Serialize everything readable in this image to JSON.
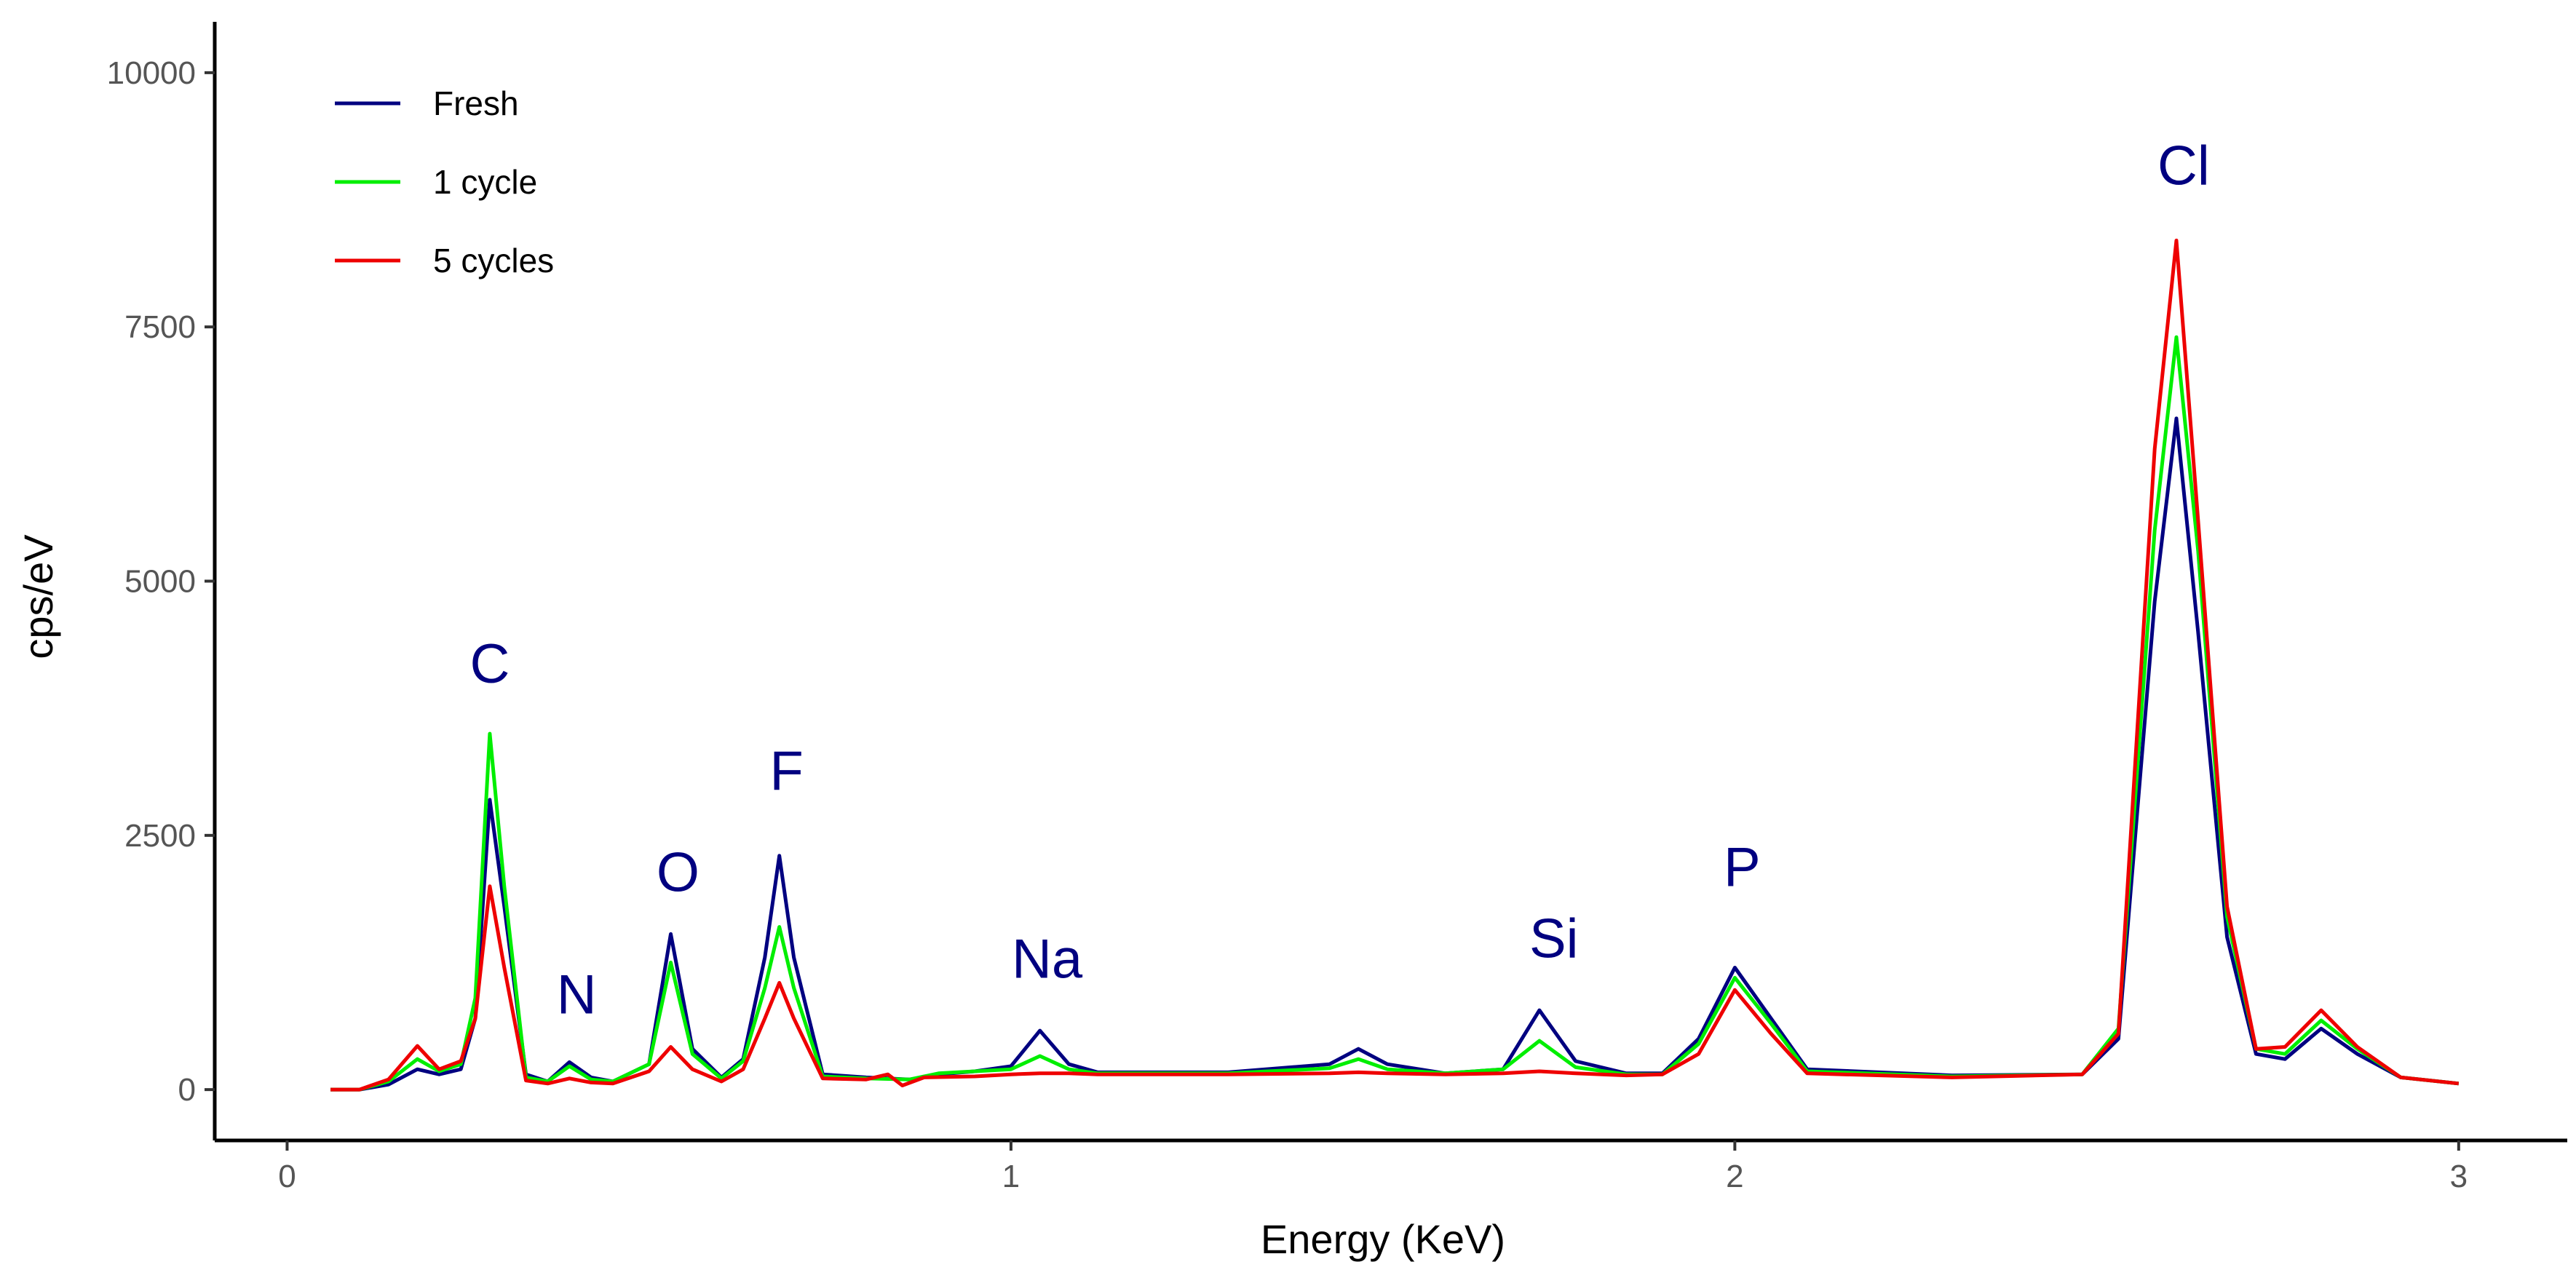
{
  "chart_data": {
    "type": "line",
    "title": "",
    "xlabel": "Energy (KeV)",
    "ylabel": "cps/eV",
    "xlim": [
      -0.1,
      3.15
    ],
    "ylim": [
      -500,
      10500
    ],
    "xticks": [
      0,
      1,
      2,
      3
    ],
    "xtick_labels": [
      "0",
      "1",
      "2",
      "3"
    ],
    "yticks": [
      0,
      2500,
      5000,
      7500,
      10000
    ],
    "ytick_labels": [
      "0",
      "2500",
      "5000",
      "7500",
      "10000"
    ],
    "grid": false,
    "legend_position": "top-left",
    "series": [
      {
        "name": "Fresh",
        "color": "#000080",
        "points": [
          [
            0.06,
            0
          ],
          [
            0.1,
            0
          ],
          [
            0.14,
            50
          ],
          [
            0.18,
            200
          ],
          [
            0.21,
            150
          ],
          [
            0.24,
            200
          ],
          [
            0.26,
            700
          ],
          [
            0.28,
            2850
          ],
          [
            0.3,
            1800
          ],
          [
            0.33,
            150
          ],
          [
            0.36,
            80
          ],
          [
            0.39,
            270
          ],
          [
            0.42,
            120
          ],
          [
            0.45,
            80
          ],
          [
            0.5,
            250
          ],
          [
            0.53,
            1530
          ],
          [
            0.56,
            400
          ],
          [
            0.6,
            120
          ],
          [
            0.63,
            300
          ],
          [
            0.66,
            1300
          ],
          [
            0.68,
            2300
          ],
          [
            0.7,
            1300
          ],
          [
            0.74,
            150
          ],
          [
            0.8,
            120
          ],
          [
            0.86,
            100
          ],
          [
            0.9,
            150
          ],
          [
            0.95,
            180
          ],
          [
            1.0,
            230
          ],
          [
            1.04,
            580
          ],
          [
            1.08,
            250
          ],
          [
            1.12,
            170
          ],
          [
            1.3,
            170
          ],
          [
            1.44,
            250
          ],
          [
            1.48,
            400
          ],
          [
            1.52,
            250
          ],
          [
            1.6,
            160
          ],
          [
            1.68,
            200
          ],
          [
            1.73,
            780
          ],
          [
            1.78,
            280
          ],
          [
            1.85,
            160
          ],
          [
            1.9,
            160
          ],
          [
            1.95,
            500
          ],
          [
            2.0,
            1200
          ],
          [
            2.05,
            700
          ],
          [
            2.1,
            200
          ],
          [
            2.3,
            140
          ],
          [
            2.48,
            150
          ],
          [
            2.53,
            500
          ],
          [
            2.58,
            4800
          ],
          [
            2.61,
            6600
          ],
          [
            2.64,
            4500
          ],
          [
            2.68,
            1500
          ],
          [
            2.72,
            350
          ],
          [
            2.76,
            300
          ],
          [
            2.81,
            600
          ],
          [
            2.86,
            350
          ],
          [
            2.92,
            120
          ],
          [
            3.0,
            60
          ]
        ]
      },
      {
        "name": "1 cycle",
        "color": "#00ee00",
        "points": [
          [
            0.06,
            0
          ],
          [
            0.1,
            0
          ],
          [
            0.14,
            80
          ],
          [
            0.18,
            300
          ],
          [
            0.21,
            180
          ],
          [
            0.24,
            250
          ],
          [
            0.26,
            900
          ],
          [
            0.28,
            3500
          ],
          [
            0.3,
            2000
          ],
          [
            0.33,
            120
          ],
          [
            0.36,
            80
          ],
          [
            0.39,
            230
          ],
          [
            0.42,
            100
          ],
          [
            0.45,
            80
          ],
          [
            0.5,
            250
          ],
          [
            0.53,
            1250
          ],
          [
            0.56,
            350
          ],
          [
            0.6,
            110
          ],
          [
            0.63,
            280
          ],
          [
            0.66,
            1000
          ],
          [
            0.68,
            1600
          ],
          [
            0.7,
            1000
          ],
          [
            0.74,
            130
          ],
          [
            0.8,
            110
          ],
          [
            0.86,
            100
          ],
          [
            0.9,
            160
          ],
          [
            0.95,
            180
          ],
          [
            1.0,
            200
          ],
          [
            1.04,
            330
          ],
          [
            1.08,
            200
          ],
          [
            1.12,
            160
          ],
          [
            1.3,
            160
          ],
          [
            1.44,
            210
          ],
          [
            1.48,
            300
          ],
          [
            1.52,
            200
          ],
          [
            1.6,
            160
          ],
          [
            1.68,
            200
          ],
          [
            1.73,
            480
          ],
          [
            1.78,
            220
          ],
          [
            1.85,
            150
          ],
          [
            1.9,
            150
          ],
          [
            1.95,
            450
          ],
          [
            2.0,
            1100
          ],
          [
            2.05,
            650
          ],
          [
            2.1,
            180
          ],
          [
            2.3,
            130
          ],
          [
            2.48,
            150
          ],
          [
            2.53,
            600
          ],
          [
            2.58,
            5500
          ],
          [
            2.61,
            7400
          ],
          [
            2.64,
            5300
          ],
          [
            2.68,
            1700
          ],
          [
            2.72,
            400
          ],
          [
            2.76,
            350
          ],
          [
            2.81,
            680
          ],
          [
            2.86,
            400
          ],
          [
            2.92,
            120
          ],
          [
            3.0,
            60
          ]
        ]
      },
      {
        "name": "5 cycles",
        "color": "#ee0000",
        "points": [
          [
            0.06,
            0
          ],
          [
            0.1,
            0
          ],
          [
            0.14,
            100
          ],
          [
            0.18,
            430
          ],
          [
            0.21,
            200
          ],
          [
            0.24,
            280
          ],
          [
            0.26,
            700
          ],
          [
            0.28,
            2000
          ],
          [
            0.3,
            1200
          ],
          [
            0.33,
            90
          ],
          [
            0.36,
            60
          ],
          [
            0.39,
            110
          ],
          [
            0.42,
            70
          ],
          [
            0.45,
            60
          ],
          [
            0.5,
            180
          ],
          [
            0.53,
            420
          ],
          [
            0.56,
            200
          ],
          [
            0.6,
            80
          ],
          [
            0.63,
            200
          ],
          [
            0.66,
            700
          ],
          [
            0.68,
            1050
          ],
          [
            0.7,
            700
          ],
          [
            0.74,
            110
          ],
          [
            0.8,
            100
          ],
          [
            0.83,
            150
          ],
          [
            0.85,
            40
          ],
          [
            0.88,
            120
          ],
          [
            0.95,
            130
          ],
          [
            1.0,
            150
          ],
          [
            1.04,
            160
          ],
          [
            1.08,
            160
          ],
          [
            1.12,
            150
          ],
          [
            1.3,
            150
          ],
          [
            1.44,
            160
          ],
          [
            1.48,
            170
          ],
          [
            1.52,
            160
          ],
          [
            1.6,
            150
          ],
          [
            1.68,
            160
          ],
          [
            1.73,
            180
          ],
          [
            1.78,
            160
          ],
          [
            1.85,
            140
          ],
          [
            1.9,
            150
          ],
          [
            1.95,
            350
          ],
          [
            2.0,
            980
          ],
          [
            2.05,
            550
          ],
          [
            2.1,
            160
          ],
          [
            2.3,
            120
          ],
          [
            2.48,
            150
          ],
          [
            2.53,
            550
          ],
          [
            2.58,
            6300
          ],
          [
            2.61,
            8350
          ],
          [
            2.64,
            5600
          ],
          [
            2.68,
            1800
          ],
          [
            2.72,
            400
          ],
          [
            2.76,
            420
          ],
          [
            2.81,
            780
          ],
          [
            2.86,
            420
          ],
          [
            2.92,
            120
          ],
          [
            3.0,
            60
          ]
        ]
      }
    ],
    "annotations": [
      {
        "text": "C",
        "x": 0.28,
        "y": 4000
      },
      {
        "text": "N",
        "x": 0.4,
        "y": 750
      },
      {
        "text": "O",
        "x": 0.54,
        "y": 1950
      },
      {
        "text": "F",
        "x": 0.69,
        "y": 2950
      },
      {
        "text": "Na",
        "x": 1.05,
        "y": 1100
      },
      {
        "text": "Si",
        "x": 1.75,
        "y": 1300
      },
      {
        "text": "P",
        "x": 2.01,
        "y": 2000
      },
      {
        "text": "Cl",
        "x": 2.62,
        "y": 8900
      }
    ]
  }
}
